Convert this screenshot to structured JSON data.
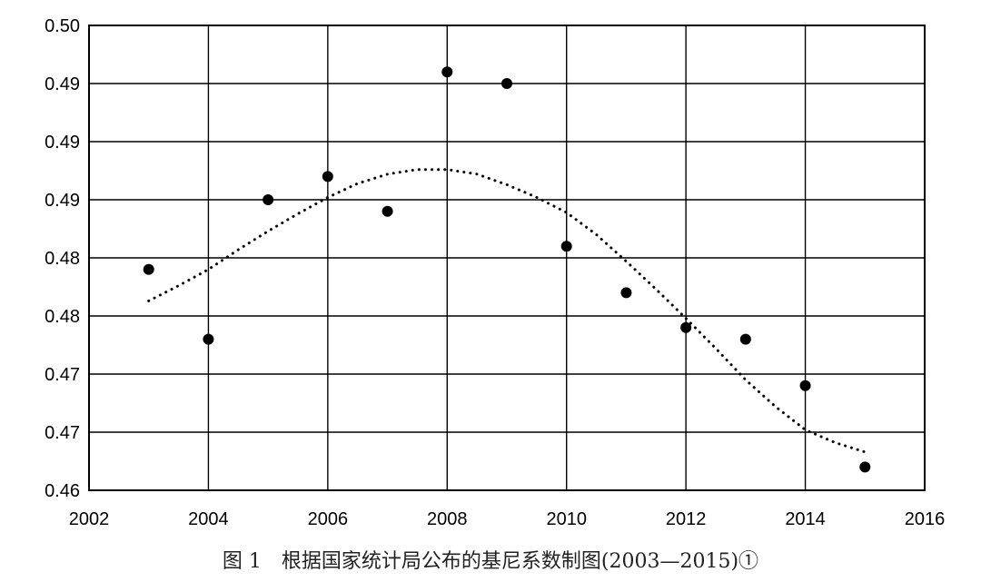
{
  "chart_data": {
    "type": "scatter",
    "title": "",
    "xlabel": "",
    "ylabel": "",
    "xlim": [
      2002,
      2016
    ],
    "ylim": [
      0.46,
      0.5
    ],
    "x_ticks": [
      2002,
      2004,
      2006,
      2008,
      2010,
      2012,
      2014,
      2016
    ],
    "x_tick_labels": [
      "2002",
      "2004",
      "2006",
      "2008",
      "2010",
      "2012",
      "2014",
      "2016"
    ],
    "y_ticks": [
      0.46,
      0.465,
      0.47,
      0.475,
      0.48,
      0.485,
      0.49,
      0.495,
      0.5
    ],
    "y_tick_labels": [
      "0.46",
      "0.47",
      "0.47",
      "0.48",
      "0.48",
      "0.49",
      "0.49",
      "0.49",
      "0.50"
    ],
    "grid": true,
    "series": [
      {
        "x": [
          2003,
          2004,
          2005,
          2006,
          2007,
          2008,
          2009,
          2010,
          2011,
          2012,
          2013,
          2014,
          2015
        ],
        "y": [
          0.479,
          0.473,
          0.485,
          0.487,
          0.484,
          0.496,
          0.495,
          0.481,
          0.477,
          0.474,
          0.473,
          0.469,
          0.462
        ]
      }
    ],
    "trendline": {
      "style": "dotted",
      "x": [
        2003,
        2003.5,
        2004,
        2004.5,
        2005,
        2005.5,
        2006,
        2006.5,
        2007,
        2007.5,
        2008,
        2008.5,
        2009,
        2009.5,
        2010,
        2010.5,
        2011,
        2011.5,
        2012,
        2012.5,
        2013,
        2013.5,
        2014,
        2014.5,
        2015
      ],
      "y": [
        0.4763,
        0.4776,
        0.479,
        0.4807,
        0.4823,
        0.4838,
        0.4852,
        0.4864,
        0.4872,
        0.4876,
        0.4876,
        0.4872,
        0.4863,
        0.4852,
        0.4839,
        0.482,
        0.4797,
        0.4773,
        0.4748,
        0.4722,
        0.4695,
        0.4672,
        0.4652,
        0.4641,
        0.4633
      ]
    }
  },
  "caption": "图 1　根据国家统计局公布的基尼系数制图(2003—2015)①"
}
